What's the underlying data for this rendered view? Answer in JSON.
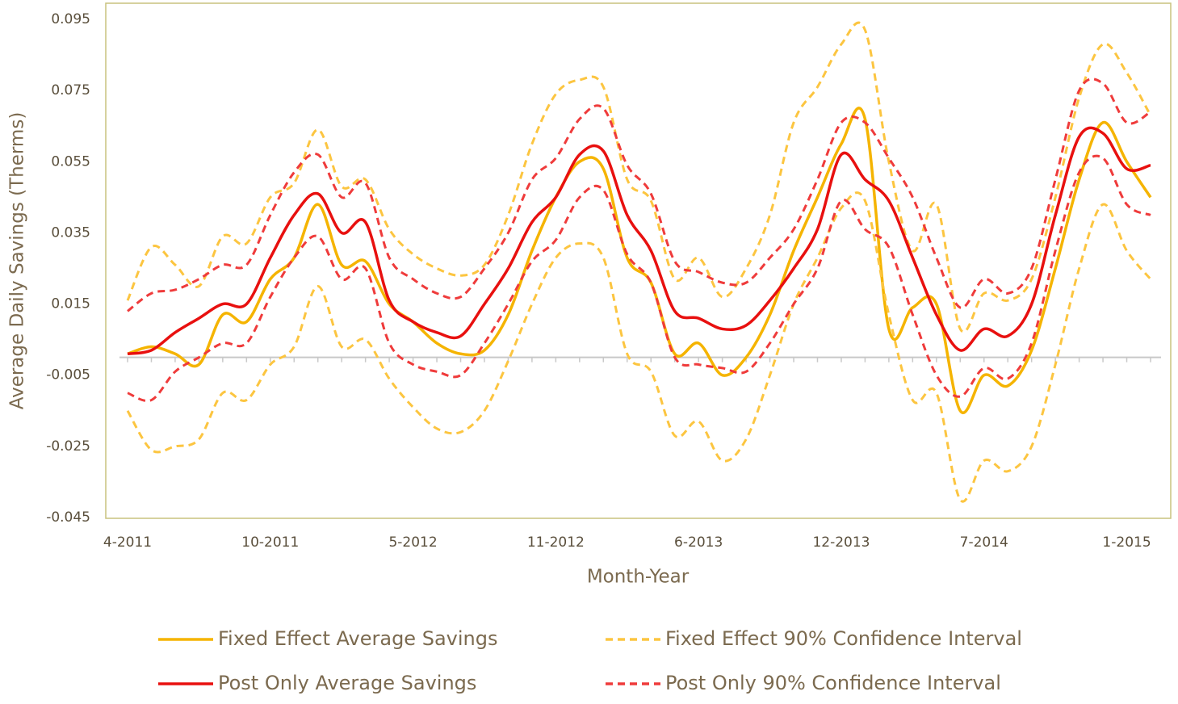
{
  "chart_data": {
    "type": "line",
    "x_label": "Month-Year",
    "y_label": "Average Daily Savings (Therms)",
    "categories": [
      "4-2011",
      null,
      null,
      null,
      null,
      null,
      "10-2011",
      null,
      null,
      null,
      null,
      null,
      "5-2012",
      null,
      null,
      null,
      null,
      null,
      "11-2012",
      null,
      null,
      null,
      null,
      null,
      "6-2013",
      null,
      null,
      null,
      null,
      null,
      "12-2013",
      null,
      null,
      null,
      null,
      null,
      "7-2014",
      null,
      null,
      null,
      null,
      null,
      "1-2015",
      null
    ],
    "ylim": [
      -0.045,
      0.095
    ],
    "yticks": [
      -0.045,
      -0.025,
      -0.005,
      0.015,
      0.035,
      0.055,
      0.075,
      0.095
    ],
    "series": [
      {
        "name": "Fixed Effect Average Savings",
        "color": "#f5b400",
        "line_style": "solid",
        "values": [
          0.001,
          0.003,
          0.001,
          -0.002,
          0.012,
          0.01,
          0.022,
          0.028,
          0.043,
          0.026,
          0.027,
          0.015,
          0.01,
          0.004,
          0.001,
          0.002,
          0.012,
          0.03,
          0.045,
          0.055,
          0.053,
          0.028,
          0.021,
          0.001,
          0.004,
          -0.005,
          0.0,
          0.012,
          0.03,
          0.045,
          0.06,
          0.067,
          0.008,
          0.014,
          0.015,
          -0.015,
          -0.005,
          -0.008,
          0.002,
          0.025,
          0.05,
          0.066,
          0.055,
          0.045
        ]
      },
      {
        "name": "Fixed Effect 90% Confidence Interval",
        "color": "#fcc540",
        "line_style": "dashed",
        "upper": [
          0.016,
          0.031,
          0.026,
          0.02,
          0.034,
          0.032,
          0.045,
          0.049,
          0.064,
          0.048,
          0.05,
          0.036,
          0.029,
          0.025,
          0.023,
          0.026,
          0.04,
          0.06,
          0.074,
          0.078,
          0.076,
          0.05,
          0.044,
          0.022,
          0.028,
          0.017,
          0.025,
          0.04,
          0.066,
          0.076,
          0.088,
          0.092,
          0.055,
          0.03,
          0.043,
          0.008,
          0.018,
          0.016,
          0.022,
          0.045,
          0.073,
          0.088,
          0.08,
          0.068
        ],
        "lower": [
          -0.015,
          -0.026,
          -0.025,
          -0.023,
          -0.01,
          -0.012,
          -0.002,
          0.003,
          0.02,
          0.003,
          0.005,
          -0.006,
          -0.014,
          -0.02,
          -0.021,
          -0.015,
          -0.001,
          0.015,
          0.028,
          0.032,
          0.028,
          0.001,
          -0.004,
          -0.022,
          -0.018,
          -0.029,
          -0.023,
          -0.005,
          0.015,
          0.028,
          0.042,
          0.044,
          0.012,
          -0.012,
          -0.01,
          -0.04,
          -0.029,
          -0.032,
          -0.025,
          -0.002,
          0.025,
          0.043,
          0.03,
          0.022
        ]
      },
      {
        "name": "Post Only Average Savings",
        "color": "#e8100f",
        "line_style": "solid",
        "values": [
          0.001,
          0.002,
          0.007,
          0.011,
          0.015,
          0.015,
          0.028,
          0.04,
          0.046,
          0.035,
          0.038,
          0.016,
          0.01,
          0.007,
          0.006,
          0.015,
          0.025,
          0.038,
          0.045,
          0.057,
          0.058,
          0.04,
          0.03,
          0.013,
          0.011,
          0.008,
          0.009,
          0.016,
          0.025,
          0.036,
          0.057,
          0.05,
          0.044,
          0.028,
          0.012,
          0.002,
          0.008,
          0.006,
          0.015,
          0.04,
          0.062,
          0.063,
          0.053,
          0.054
        ]
      },
      {
        "name": "Post Only 90% Confidence Interval",
        "color": "#ef3b3b",
        "line_style": "dashed",
        "upper": [
          0.013,
          0.018,
          0.019,
          0.022,
          0.026,
          0.026,
          0.04,
          0.052,
          0.057,
          0.045,
          0.049,
          0.028,
          0.022,
          0.018,
          0.017,
          0.025,
          0.035,
          0.05,
          0.056,
          0.067,
          0.07,
          0.054,
          0.046,
          0.027,
          0.024,
          0.021,
          0.021,
          0.028,
          0.036,
          0.05,
          0.066,
          0.066,
          0.056,
          0.045,
          0.028,
          0.014,
          0.022,
          0.018,
          0.025,
          0.05,
          0.075,
          0.077,
          0.066,
          0.069
        ],
        "lower": [
          -0.01,
          -0.012,
          -0.004,
          0.0,
          0.004,
          0.004,
          0.017,
          0.028,
          0.034,
          0.022,
          0.025,
          0.004,
          -0.002,
          -0.004,
          -0.005,
          0.004,
          0.015,
          0.027,
          0.033,
          0.045,
          0.047,
          0.029,
          0.021,
          0.0,
          -0.002,
          -0.003,
          -0.004,
          0.004,
          0.015,
          0.025,
          0.044,
          0.036,
          0.031,
          0.012,
          -0.005,
          -0.011,
          -0.003,
          -0.006,
          0.004,
          0.03,
          0.052,
          0.056,
          0.043,
          0.04
        ]
      }
    ]
  }
}
